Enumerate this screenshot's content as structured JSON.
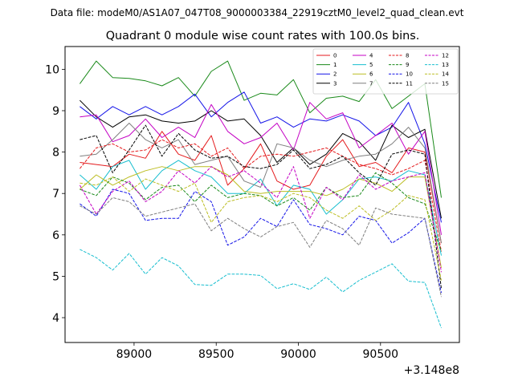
{
  "suptitle": "Data file: modeM0/AS1A07_047T08_9000003384_22919cztM0_level2_quad_clean.evt",
  "chart_data": {
    "type": "line",
    "title": "Quadrant 0 module wise count rates with 100.0s bins.",
    "xlabel": "",
    "ylabel": "",
    "offset_label": "+3.148e8",
    "xlim": [
      88580,
      90980
    ],
    "ylim": [
      3.4,
      10.55
    ],
    "xticks": [
      89000,
      89500,
      90000,
      90500
    ],
    "xtick_labels": [
      "89000",
      "89500",
      "90000",
      "90500"
    ],
    "yticks": [
      4,
      5,
      6,
      7,
      8,
      9,
      10
    ],
    "ytick_labels": [
      "4",
      "5",
      "6",
      "7",
      "8",
      "9",
      "10"
    ],
    "legend_loc": "upper-right",
    "legend_columns": 4,
    "x": [
      88670,
      88770,
      88870,
      88970,
      89070,
      89170,
      89270,
      89370,
      89470,
      89570,
      89670,
      89770,
      89870,
      89970,
      90070,
      90170,
      90270,
      90370,
      90470,
      90570,
      90670,
      90770,
      90870
    ],
    "series": [
      {
        "name": "0",
        "color": "#e41a1c",
        "dash": "solid",
        "values": [
          7.75,
          7.7,
          7.65,
          7.95,
          7.85,
          8.5,
          7.95,
          7.8,
          8.4,
          7.2,
          7.6,
          8.2,
          7.3,
          7.1,
          7.2,
          7.9,
          8.3,
          7.65,
          7.75,
          7.5,
          8.1,
          8.0,
          5.8
        ]
      },
      {
        "name": "1",
        "color": "#1a8a1a",
        "dash": "solid",
        "values": [
          9.65,
          10.2,
          9.8,
          9.78,
          9.72,
          9.6,
          9.8,
          9.35,
          9.95,
          10.2,
          9.25,
          9.42,
          9.38,
          9.75,
          8.95,
          9.3,
          9.35,
          9.22,
          9.75,
          9.05,
          9.35,
          9.65,
          6.9
        ]
      },
      {
        "name": "2",
        "color": "#1414e8",
        "dash": "solid",
        "values": [
          9.1,
          8.8,
          9.1,
          8.9,
          9.1,
          8.9,
          9.1,
          9.4,
          8.85,
          9.2,
          9.45,
          8.7,
          8.85,
          8.6,
          8.8,
          8.75,
          8.9,
          8.75,
          8.4,
          8.6,
          9.2,
          8.2,
          6.3
        ]
      },
      {
        "name": "3",
        "color": "#000000",
        "dash": "solid",
        "values": [
          9.25,
          8.85,
          8.6,
          8.85,
          8.9,
          8.75,
          8.7,
          8.75,
          9.0,
          8.75,
          8.8,
          8.4,
          7.75,
          8.1,
          7.7,
          7.95,
          8.45,
          8.25,
          7.8,
          8.65,
          8.35,
          8.55,
          6.4
        ]
      },
      {
        "name": "4",
        "color": "#c400c4",
        "dash": "solid",
        "values": [
          8.85,
          8.9,
          8.25,
          8.4,
          8.8,
          8.35,
          8.6,
          8.35,
          9.15,
          8.5,
          8.2,
          8.35,
          8.7,
          8.05,
          9.2,
          8.8,
          8.95,
          8.1,
          8.4,
          8.7,
          7.95,
          8.5,
          6.0
        ]
      },
      {
        "name": "5",
        "color": "#17becf",
        "dash": "solid",
        "values": [
          7.45,
          7.1,
          7.65,
          7.8,
          7.1,
          7.55,
          7.8,
          7.55,
          7.4,
          7.0,
          7.0,
          7.35,
          6.7,
          7.2,
          7.1,
          6.5,
          6.85,
          7.35,
          7.4,
          7.3,
          7.55,
          7.45,
          5.5
        ]
      },
      {
        "name": "6",
        "color": "#bcbd22",
        "dash": "solid",
        "values": [
          7.1,
          7.45,
          7.2,
          7.4,
          7.55,
          7.65,
          7.55,
          7.65,
          7.65,
          7.45,
          7.05,
          7.0,
          7.05,
          7.05,
          7.05,
          6.95,
          7.1,
          7.35,
          7.25,
          7.05,
          7.4,
          7.4,
          5.2
        ]
      },
      {
        "name": "7",
        "color": "#7f7f7f",
        "dash": "solid",
        "values": [
          7.9,
          7.95,
          8.3,
          8.7,
          8.3,
          8.1,
          8.3,
          7.7,
          7.8,
          7.9,
          7.3,
          7.15,
          8.2,
          8.1,
          7.8,
          7.65,
          7.8,
          7.9,
          7.95,
          8.2,
          8.6,
          8.1,
          5.8
        ]
      },
      {
        "name": "8",
        "color": "#e41a1c",
        "dash": "dashed",
        "values": [
          7.6,
          8.1,
          8.2,
          8.0,
          8.05,
          8.3,
          8.1,
          8.2,
          7.9,
          8.1,
          7.6,
          7.9,
          7.95,
          7.9,
          8.0,
          8.1,
          7.9,
          7.7,
          7.6,
          7.45,
          7.6,
          7.8,
          5.6
        ]
      },
      {
        "name": "9",
        "color": "#1a8a1a",
        "dash": "dashed",
        "values": [
          7.1,
          6.95,
          7.4,
          7.25,
          6.85,
          7.15,
          7.2,
          6.8,
          7.2,
          6.9,
          7.0,
          6.95,
          6.7,
          6.9,
          6.6,
          7.15,
          6.9,
          6.95,
          7.5,
          7.25,
          6.9,
          6.75,
          5.6
        ]
      },
      {
        "name": "10",
        "color": "#1414e8",
        "dash": "dashed",
        "values": [
          6.75,
          6.45,
          7.1,
          7.0,
          6.35,
          6.4,
          6.4,
          7.05,
          6.8,
          5.75,
          5.95,
          6.4,
          6.2,
          6.85,
          6.25,
          6.15,
          6.0,
          6.45,
          6.35,
          5.8,
          6.05,
          6.4,
          4.6
        ]
      },
      {
        "name": "11",
        "color": "#000000",
        "dash": "dashed",
        "values": [
          8.3,
          8.4,
          7.5,
          8.05,
          8.65,
          7.9,
          8.45,
          8.05,
          7.85,
          7.9,
          7.65,
          7.6,
          7.7,
          8.05,
          7.6,
          7.7,
          7.9,
          7.5,
          7.2,
          7.95,
          8.05,
          7.95,
          4.7
        ]
      },
      {
        "name": "12",
        "color": "#c400c4",
        "dash": "dashed",
        "values": [
          7.2,
          6.5,
          7.05,
          7.3,
          6.8,
          7.05,
          7.55,
          7.25,
          7.65,
          7.4,
          7.55,
          7.25,
          6.9,
          7.65,
          6.4,
          7.15,
          6.85,
          7.45,
          7.1,
          7.3,
          7.4,
          7.5,
          5.1
        ]
      },
      {
        "name": "13",
        "color": "#17becf",
        "dash": "dashed",
        "values": [
          5.65,
          5.45,
          5.15,
          5.55,
          5.05,
          5.45,
          5.25,
          4.8,
          4.78,
          5.05,
          5.05,
          5.02,
          4.7,
          4.82,
          4.68,
          4.98,
          4.62,
          4.9,
          5.1,
          5.3,
          4.88,
          4.85,
          3.75
        ]
      },
      {
        "name": "14",
        "color": "#bcbd22",
        "dash": "dashed",
        "values": [
          7.25,
          7.2,
          7.4,
          7.05,
          7.35,
          7.2,
          7.05,
          7.25,
          6.3,
          6.8,
          6.9,
          6.95,
          6.8,
          7.0,
          6.9,
          6.6,
          6.4,
          6.7,
          6.35,
          6.6,
          6.95,
          6.85,
          4.9
        ]
      },
      {
        "name": "15",
        "color": "#7f7f7f",
        "dash": "dashed",
        "values": [
          6.7,
          6.5,
          6.9,
          6.8,
          6.45,
          6.55,
          6.65,
          6.75,
          6.1,
          6.4,
          6.15,
          5.95,
          6.2,
          6.3,
          5.7,
          6.35,
          6.15,
          5.75,
          6.65,
          6.5,
          6.45,
          6.4,
          4.5
        ]
      }
    ]
  }
}
